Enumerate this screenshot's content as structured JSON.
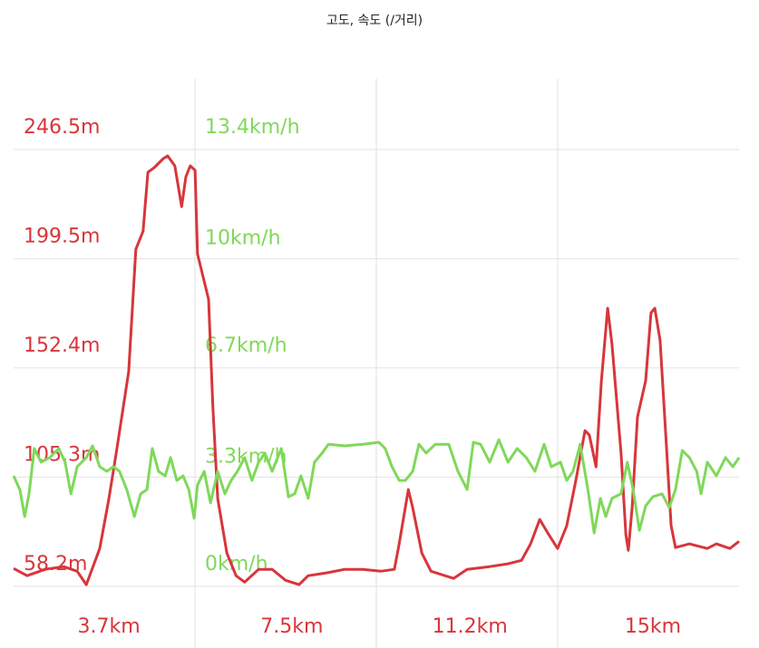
{
  "chart_data": {
    "type": "line",
    "title": "고도, 속도 (/거리)",
    "xlim": [
      1.72,
      16.79
    ],
    "xticks": [
      {
        "value": 3.7,
        "label": "3.7km"
      },
      {
        "value": 7.5,
        "label": "7.5km"
      },
      {
        "value": 11.2,
        "label": "11.2km"
      },
      {
        "value": 15,
        "label": "15km"
      }
    ],
    "ylim": [
      31.6,
      277
    ],
    "yticks": [
      {
        "value": 58.2,
        "label": "58.2m"
      },
      {
        "value": 105.3,
        "label": "105.3m"
      },
      {
        "value": 152.4,
        "label": "152.4m"
      },
      {
        "value": 199.5,
        "label": "199.5m"
      },
      {
        "value": 246.5,
        "label": "246.5m"
      }
    ],
    "y2lim": [
      -1.89,
      15.57
    ],
    "y2ticks": [
      {
        "value": 0,
        "label": "0km/h"
      },
      {
        "value": 3.3,
        "label": "3.3km/h"
      },
      {
        "value": 6.7,
        "label": "6.7km/h"
      },
      {
        "value": 10,
        "label": "10km/h"
      },
      {
        "value": 13.4,
        "label": "13.4km/h"
      }
    ],
    "y_color": "#d7363b",
    "y2_color": "#80d85a",
    "grid": true,
    "series": [
      {
        "color": "#d7363b",
        "x": [
          1.72,
          2.0,
          2.38,
          2.76,
          3.04,
          3.23,
          3.51,
          3.7,
          3.85,
          3.98,
          4.11,
          4.26,
          4.41,
          4.51,
          4.64,
          4.83,
          4.92,
          5.07,
          5.21,
          5.3,
          5.39,
          5.49,
          5.54,
          5.77,
          5.86,
          5.96,
          6.15,
          6.34,
          6.52,
          6.81,
          7.09,
          7.37,
          7.65,
          7.84,
          8.22,
          8.6,
          8.97,
          9.35,
          9.63,
          9.73,
          9.92,
          10.01,
          10.2,
          10.39,
          10.86,
          11.14,
          11.61,
          11.99,
          12.27,
          12.46,
          12.65,
          12.84,
          13.02,
          13.21,
          13.4,
          13.59,
          13.68,
          13.82,
          13.93,
          14.06,
          14.15,
          14.34,
          14.44,
          14.49,
          14.57,
          14.68,
          14.85,
          14.96,
          15.04,
          15.15,
          15.28,
          15.38,
          15.47,
          15.76,
          16.13,
          16.32,
          16.6,
          16.79
        ],
        "values": [
          65.9,
          62.8,
          65.5,
          66.7,
          64.7,
          58.9,
          74.5,
          96.0,
          115.5,
          133.1,
          150.7,
          203.5,
          211.3,
          236.7,
          238.7,
          242.6,
          243.8,
          239.5,
          221.9,
          234.8,
          239.5,
          237.6,
          201.5,
          182.0,
          135.1,
          96.0,
          72.5,
          62.8,
          60.0,
          65.5,
          65.5,
          60.8,
          58.9,
          62.8,
          64.0,
          65.5,
          65.5,
          64.7,
          65.5,
          76.5,
          99.9,
          92.1,
          72.5,
          64.7,
          61.6,
          65.5,
          66.7,
          67.9,
          69.4,
          76.5,
          87.0,
          80.4,
          74.5,
          84.3,
          103.8,
          125.3,
          123.4,
          109.7,
          146.8,
          178.1,
          162.5,
          115.5,
          80.4,
          73.7,
          92.1,
          131.2,
          146.8,
          176.1,
          178.1,
          164.4,
          119.5,
          84.3,
          74.9,
          76.5,
          74.5,
          76.5,
          74.5,
          77.6
        ]
      },
      {
        "color": "#80d85a",
        "axis": "y2",
        "x": [
          1.72,
          1.85,
          1.95,
          2.04,
          2.15,
          2.29,
          2.47,
          2.66,
          2.79,
          2.91,
          3.04,
          3.23,
          3.36,
          3.51,
          3.66,
          3.79,
          3.92,
          4.07,
          4.23,
          4.36,
          4.49,
          4.6,
          4.73,
          4.87,
          4.98,
          5.11,
          5.24,
          5.36,
          5.47,
          5.54,
          5.68,
          5.81,
          5.96,
          6.11,
          6.24,
          6.37,
          6.52,
          6.67,
          6.81,
          6.94,
          7.09,
          7.28,
          7.43,
          7.56,
          7.69,
          7.84,
          7.97,
          8.13,
          8.26,
          8.6,
          8.97,
          9.31,
          9.44,
          9.58,
          9.73,
          9.86,
          10.01,
          10.14,
          10.29,
          10.48,
          10.76,
          10.95,
          11.14,
          11.27,
          11.42,
          11.61,
          11.8,
          11.99,
          12.18,
          12.37,
          12.55,
          12.74,
          12.89,
          13.08,
          13.21,
          13.34,
          13.49,
          13.65,
          13.78,
          13.91,
          14.02,
          14.15,
          14.34,
          14.47,
          14.59,
          14.72,
          14.85,
          15.0,
          15.19,
          15.34,
          15.47,
          15.61,
          15.76,
          15.91,
          16.0,
          16.13,
          16.32,
          16.51,
          16.66,
          16.79
        ],
        "values": [
          3.39,
          2.97,
          2.14,
          2.84,
          4.23,
          3.81,
          3.95,
          4.23,
          3.81,
          2.84,
          3.67,
          3.95,
          4.31,
          3.67,
          3.53,
          3.67,
          3.53,
          2.97,
          2.14,
          2.84,
          2.97,
          4.23,
          3.53,
          3.39,
          3.95,
          3.25,
          3.39,
          2.97,
          2.09,
          3.11,
          3.53,
          2.56,
          3.53,
          2.84,
          3.25,
          3.53,
          3.95,
          3.25,
          3.81,
          4.09,
          3.53,
          4.23,
          2.75,
          2.84,
          3.39,
          2.7,
          3.81,
          4.09,
          4.36,
          4.31,
          4.36,
          4.42,
          4.23,
          3.67,
          3.25,
          3.25,
          3.53,
          4.36,
          4.09,
          4.36,
          4.36,
          3.53,
          2.97,
          4.42,
          4.36,
          3.81,
          4.5,
          3.81,
          4.23,
          3.95,
          3.53,
          4.36,
          3.67,
          3.81,
          3.25,
          3.53,
          4.36,
          2.97,
          1.64,
          2.7,
          2.14,
          2.7,
          2.84,
          3.81,
          2.97,
          1.72,
          2.47,
          2.75,
          2.84,
          2.42,
          2.97,
          4.17,
          3.95,
          3.53,
          2.84,
          3.81,
          3.39,
          3.95,
          3.67,
          3.95
        ]
      }
    ]
  }
}
